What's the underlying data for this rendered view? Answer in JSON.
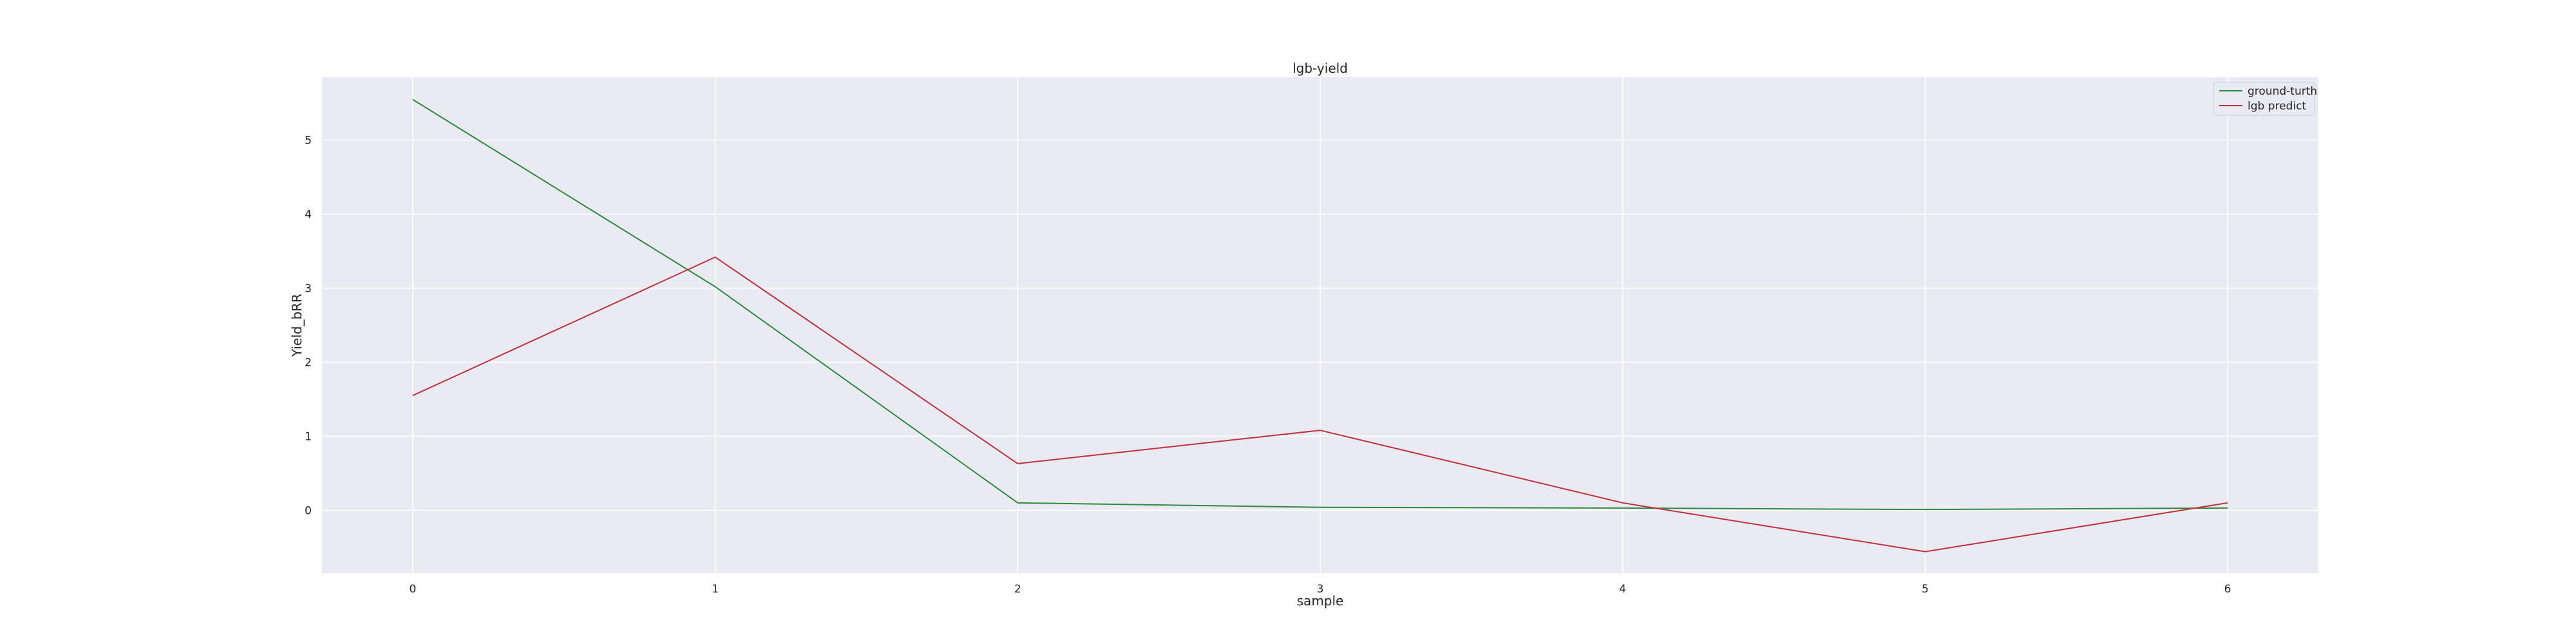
{
  "chart_data": {
    "type": "line",
    "title": "lgb-yield",
    "xlabel": "sample",
    "ylabel": "Yield_bRR",
    "x": [
      0,
      1,
      2,
      3,
      4,
      5,
      6
    ],
    "xlim": [
      -0.3,
      6.3
    ],
    "ylim": [
      -0.85,
      5.85
    ],
    "xticks": [
      "0",
      "1",
      "2",
      "3",
      "4",
      "5",
      "6"
    ],
    "yticks": [
      "0",
      "1",
      "2",
      "3",
      "4",
      "5"
    ],
    "grid": true,
    "legend_position": "top-right",
    "series": [
      {
        "name": "ground-turth",
        "color": "#2e8b3e",
        "values": [
          5.55,
          3.02,
          0.1,
          0.04,
          0.03,
          0.01,
          0.03
        ]
      },
      {
        "name": "lgb predict",
        "color": "#c0313d",
        "values": [
          1.55,
          3.42,
          0.63,
          1.08,
          0.1,
          -0.56,
          0.1
        ]
      }
    ]
  }
}
